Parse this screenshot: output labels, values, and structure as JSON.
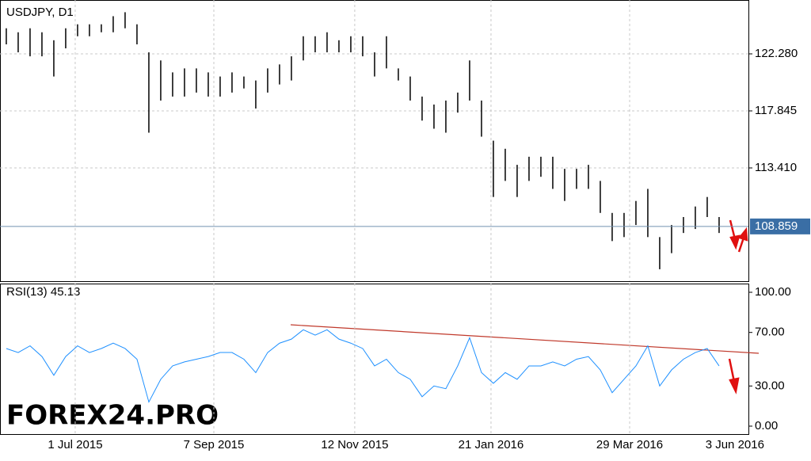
{
  "chart_data": {
    "type": "ohlc",
    "title": "USDJPY, D1",
    "watermark": "FOREX24.PRO",
    "xlim": [
      -0.53,
      62.47
    ],
    "xticks": [
      {
        "value": 5.8,
        "label": "1 Jul 2015"
      },
      {
        "value": 17.47,
        "label": "7 Sep 2015"
      },
      {
        "value": 29.33,
        "label": "12 Nov 2015"
      },
      {
        "value": 40.8,
        "label": "21 Jan 2016"
      },
      {
        "value": 52.47,
        "label": "29 Mar 2016"
      },
      {
        "value": 63.8,
        "label": "3 Jun 2016"
      }
    ],
    "ylim": [
      104.6,
      126.47
    ],
    "yticks": [
      {
        "value": 122.28,
        "label": "122.280"
      },
      117.845,
      {
        "value": 113.41,
        "label": "113.410"
      }
    ],
    "last_price": 108.859,
    "color": "#000000",
    "high": [
      124.27,
      123.96,
      124.27,
      123.96,
      123.34,
      124.27,
      124.58,
      124.58,
      124.58,
      125.21,
      125.52,
      124.58,
      122.4,
      121.77,
      120.84,
      121.15,
      121.15,
      120.84,
      120.52,
      120.84,
      120.52,
      120.21,
      121.15,
      121.46,
      122.09,
      123.65,
      123.65,
      123.96,
      123.34,
      123.65,
      123.65,
      122.4,
      123.65,
      121.15,
      120.52,
      118.96,
      118.34,
      118.65,
      119.27,
      121.77,
      118.65,
      115.53,
      114.9,
      113.65,
      114.28,
      114.28,
      114.28,
      113.34,
      113.34,
      113.65,
      112.4,
      109.91,
      109.91,
      110.84,
      111.78,
      108.03,
      108.97,
      109.59,
      110.41,
      111.15,
      109.59
    ],
    "low": [
      123.02,
      122.4,
      122.09,
      122.09,
      120.52,
      122.71,
      123.65,
      123.65,
      123.96,
      123.96,
      124.27,
      123.02,
      116.15,
      118.65,
      118.96,
      118.96,
      119.27,
      118.96,
      118.96,
      119.27,
      119.59,
      118.03,
      119.27,
      119.9,
      120.21,
      121.77,
      122.4,
      122.4,
      122.4,
      122.4,
      122.09,
      120.52,
      121.15,
      120.21,
      118.65,
      117.09,
      116.46,
      116.15,
      117.71,
      118.65,
      115.84,
      111.15,
      112.4,
      111.15,
      112.4,
      112.72,
      111.78,
      110.84,
      111.78,
      111.78,
      109.91,
      107.72,
      108.03,
      108.97,
      108.03,
      105.53,
      106.78,
      108.35,
      108.66,
      109.59,
      108.35
    ],
    "rsi": {
      "label": "RSI(13) 45.13",
      "color": "#1e90ff",
      "ylim": [
        0,
        100
      ],
      "yticks": [
        {
          "value": 100,
          "label": "100.00"
        },
        {
          "value": 70,
          "label": "70.00"
        },
        {
          "value": 30,
          "label": "30.00"
        },
        {
          "value": 0,
          "label": "0.00"
        }
      ],
      "values": [
        58,
        55,
        60,
        52,
        38,
        52,
        60,
        55,
        58,
        62,
        58,
        50,
        18,
        35,
        45,
        48,
        50,
        52,
        55,
        55,
        50,
        40,
        55,
        62,
        65,
        72,
        68,
        72,
        65,
        62,
        58,
        45,
        50,
        40,
        35,
        22,
        30,
        28,
        45,
        66,
        40,
        32,
        40,
        35,
        45,
        45,
        48,
        45,
        50,
        52,
        42,
        25,
        35,
        45,
        60,
        30,
        42,
        50,
        55,
        58,
        45
      ]
    }
  }
}
